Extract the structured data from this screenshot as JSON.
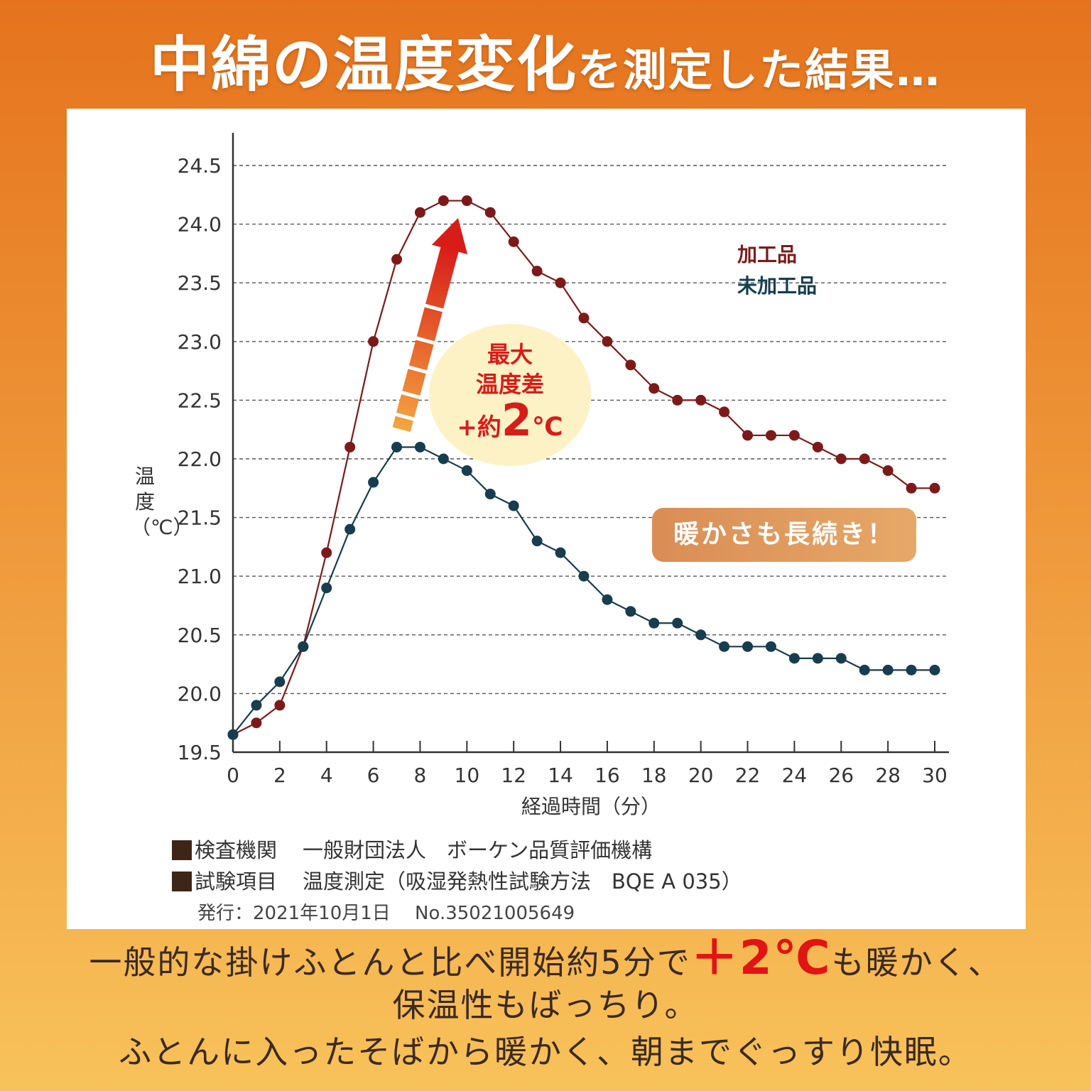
{
  "headline": {
    "part_big": "中綿の温度変化",
    "part_small": "を測定した結果…"
  },
  "legend": {
    "processed": {
      "label": "加工品",
      "color": "#7c1a1a"
    },
    "unprocessed": {
      "label": "未加工品",
      "color": "#173d4f"
    }
  },
  "callout": {
    "line1": "最大",
    "line2": "温度差",
    "prefix": "+約",
    "value": "2",
    "unit": "℃"
  },
  "badge": "暖かさも長続き！",
  "chart_data": {
    "type": "line",
    "xlabel": "経過時間（分）",
    "ylabel": "温度（℃）",
    "xlim": [
      0,
      30
    ],
    "ylim": [
      19.5,
      24.5
    ],
    "xticks": [
      0,
      2,
      4,
      6,
      8,
      10,
      12,
      14,
      16,
      18,
      20,
      22,
      24,
      26,
      28,
      30
    ],
    "yticks": [
      "19.5",
      "20.0",
      "20.5",
      "21.0",
      "21.5",
      "22.0",
      "22.5",
      "23.0",
      "23.5",
      "24.0",
      "24.5"
    ],
    "grid": "horizontal dashed",
    "legend_position": "top-right",
    "x": [
      0,
      1,
      2,
      3,
      4,
      5,
      6,
      7,
      8,
      9,
      10,
      11,
      12,
      13,
      14,
      15,
      16,
      17,
      18,
      19,
      20,
      21,
      22,
      23,
      24,
      25,
      26,
      27,
      28,
      29,
      30
    ],
    "series": [
      {
        "name": "加工品",
        "color": "#7c1a1a",
        "values": [
          19.65,
          19.75,
          19.9,
          20.4,
          21.2,
          22.1,
          23.0,
          23.7,
          24.1,
          24.2,
          24.2,
          24.1,
          23.85,
          23.6,
          23.5,
          23.2,
          23.0,
          22.8,
          22.6,
          22.5,
          22.5,
          22.4,
          22.2,
          22.2,
          22.2,
          22.1,
          22.0,
          22.0,
          21.9,
          21.75,
          21.75
        ]
      },
      {
        "name": "未加工品",
        "color": "#173d4f",
        "values": [
          19.65,
          19.9,
          20.1,
          20.4,
          20.9,
          21.4,
          21.8,
          22.1,
          22.1,
          22.0,
          21.9,
          21.7,
          21.6,
          21.3,
          21.2,
          21.0,
          20.8,
          20.7,
          20.6,
          20.6,
          20.5,
          20.4,
          20.4,
          20.4,
          20.3,
          20.3,
          20.3,
          20.2,
          20.2,
          20.2,
          20.2
        ]
      }
    ]
  },
  "notes": {
    "org_label": "検査機関",
    "org_value": "一般財団法人　ボーケン品質評価機構",
    "item_label": "試験項目",
    "item_value": "温度測定（吸湿発熱性試験方法　BQE A 035）",
    "issue": "発行：2021年10月1日　 No.35021005649"
  },
  "footer": {
    "line1_pre": "一般的な掛けふとんと比べ開始約5分で",
    "line1_hl": "＋2℃",
    "line1_post": "も暖かく、",
    "line2": "保温性もばっちり。",
    "line3": "ふとんに入ったそばから暖かく、朝までぐっすり快眠。"
  },
  "colors": {
    "accent_red": "#e21313",
    "arrow_top": "#d81d19",
    "arrow_bottom": "#f3a640"
  }
}
